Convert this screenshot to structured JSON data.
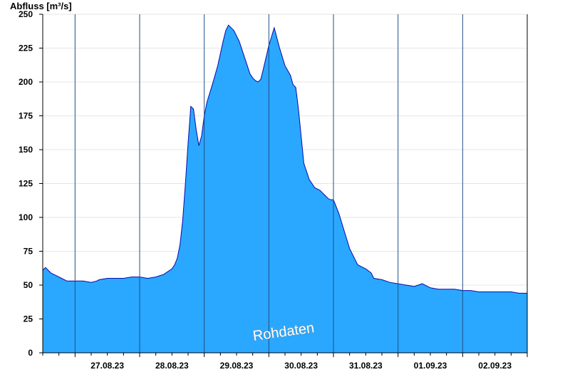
{
  "chart_data": {
    "type": "area",
    "ylabel": "Abfluss [m³/s]",
    "ylim": [
      0,
      250
    ],
    "yticks": [
      0,
      25,
      50,
      75,
      100,
      125,
      150,
      175,
      200,
      225,
      250
    ],
    "x_start": "2023-08-26 12:00",
    "x_end": "2023-09-03 00:00",
    "x_ticklabels": [
      "27.08.23",
      "28.08.23",
      "29.08.23",
      "30.08.23",
      "31.08.23",
      "01.09.23",
      "02.09.23"
    ],
    "grid": "horizontal",
    "fill_color": "#2aa7ff",
    "line_color": "#0a0aa8",
    "separator_color": "#1f4f87",
    "watermark": "Rohdaten",
    "series": [
      {
        "x": [
          "2023-08-26 12:00",
          "2023-08-26 13:00",
          "2023-08-26 14:00",
          "2023-08-26 15:00",
          "2023-08-26 17:00",
          "2023-08-26 19:00",
          "2023-08-26 21:00",
          "2023-08-27 00:00",
          "2023-08-27 03:00",
          "2023-08-27 06:00",
          "2023-08-27 08:00",
          "2023-08-27 09:00",
          "2023-08-27 12:00",
          "2023-08-27 15:00",
          "2023-08-27 18:00",
          "2023-08-27 21:00",
          "2023-08-28 00:00",
          "2023-08-28 03:00",
          "2023-08-28 06:00",
          "2023-08-28 09:00",
          "2023-08-28 12:00",
          "2023-08-28 13:00",
          "2023-08-28 14:00",
          "2023-08-28 15:00",
          "2023-08-28 16:00",
          "2023-08-28 17:00",
          "2023-08-28 18:00",
          "2023-08-28 19:00",
          "2023-08-28 20:00",
          "2023-08-28 21:00",
          "2023-08-28 22:00",
          "2023-08-28 23:00",
          "2023-08-29 00:00",
          "2023-08-29 01:00",
          "2023-08-29 03:00",
          "2023-08-29 05:00",
          "2023-08-29 07:00",
          "2023-08-29 08:00",
          "2023-08-29 09:00",
          "2023-08-29 11:00",
          "2023-08-29 13:00",
          "2023-08-29 15:00",
          "2023-08-29 17:00",
          "2023-08-29 18:00",
          "2023-08-29 19:00",
          "2023-08-29 20:00",
          "2023-08-29 21:00",
          "2023-08-29 22:00",
          "2023-08-30 00:00",
          "2023-08-30 02:00",
          "2023-08-30 04:00",
          "2023-08-30 06:00",
          "2023-08-30 08:00",
          "2023-08-30 09:00",
          "2023-08-30 10:00",
          "2023-08-30 11:00",
          "2023-08-30 12:00",
          "2023-08-30 13:00",
          "2023-08-30 15:00",
          "2023-08-30 17:00",
          "2023-08-30 19:00",
          "2023-08-30 20:00",
          "2023-08-30 21:00",
          "2023-08-30 22:00",
          "2023-08-30 23:00",
          "2023-08-31 00:00",
          "2023-08-31 02:00",
          "2023-08-31 04:00",
          "2023-08-31 06:00",
          "2023-08-31 09:00",
          "2023-08-31 12:00",
          "2023-08-31 14:00",
          "2023-08-31 15:00",
          "2023-08-31 18:00",
          "2023-08-31 21:00",
          "2023-09-01 00:00",
          "2023-09-01 03:00",
          "2023-09-01 06:00",
          "2023-09-01 09:00",
          "2023-09-01 12:00",
          "2023-09-01 15:00",
          "2023-09-01 18:00",
          "2023-09-01 21:00",
          "2023-09-02 00:00",
          "2023-09-02 03:00",
          "2023-09-02 06:00",
          "2023-09-02 09:00",
          "2023-09-02 12:00",
          "2023-09-02 15:00",
          "2023-09-02 18:00",
          "2023-09-02 21:00",
          "2023-09-03 00:00"
        ],
        "values": [
          61,
          63,
          61,
          59,
          57,
          55,
          53,
          53,
          53,
          52,
          53,
          54,
          55,
          55,
          55,
          56,
          56,
          55,
          56,
          58,
          62,
          65,
          70,
          80,
          98,
          125,
          155,
          182,
          180,
          165,
          153,
          160,
          175,
          185,
          198,
          212,
          230,
          238,
          242,
          238,
          230,
          218,
          206,
          203,
          201,
          200,
          202,
          210,
          227,
          240,
          225,
          212,
          205,
          198,
          196,
          180,
          160,
          140,
          128,
          122,
          120,
          118,
          116,
          114,
          113,
          113,
          103,
          90,
          77,
          65,
          62,
          59,
          55,
          54,
          52,
          51,
          50,
          49,
          51,
          48,
          47,
          47,
          47,
          46,
          46,
          45,
          45,
          45,
          45,
          45,
          44,
          44
        ]
      }
    ]
  }
}
